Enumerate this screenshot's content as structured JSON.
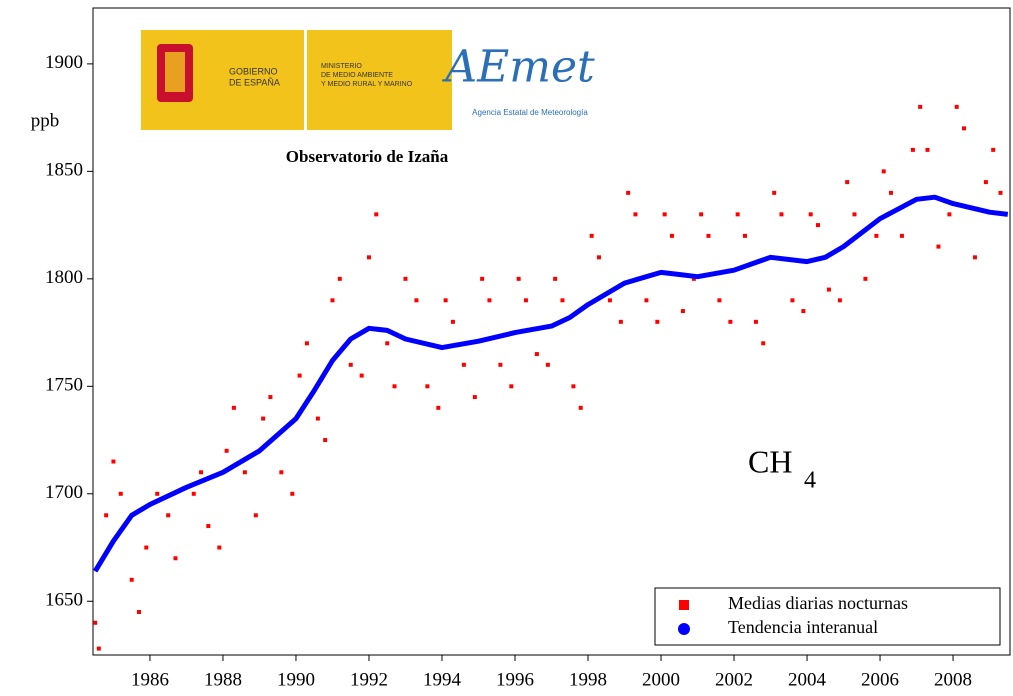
{
  "chart_data": {
    "type": "scatter",
    "subtitle": "Observatorio de Izaña",
    "y_label": "ppb",
    "formula": "CH",
    "formula_subscript": "4",
    "logo_gobierno": [
      "GOBIERNO",
      "DE ESPAÑA"
    ],
    "logo_ministerio": [
      "MINISTERIO",
      "DE MEDIO AMBIENTE",
      "Y MEDIO RURAL Y MARINO"
    ],
    "logo_aemet": "AEmet",
    "logo_agencia": "Agencia Estatal de Meteorología",
    "xlim": [
      1984.44,
      2009.56
    ],
    "ylim": [
      1625,
      1926
    ],
    "xticks": [
      1986,
      1988,
      1990,
      1992,
      1994,
      1996,
      1998,
      2000,
      2002,
      2004,
      2006,
      2008
    ],
    "yticks": [
      1650,
      1700,
      1750,
      1800,
      1850,
      1900
    ],
    "series": [
      {
        "name": "Medias diarias nocturnas",
        "color": "#ff0000",
        "type": "scatter",
        "x": [
          1984.5,
          1984.6,
          1984.8,
          1985.0,
          1985.2,
          1985.5,
          1985.7,
          1985.9,
          1986.2,
          1986.5,
          1986.7,
          1987.2,
          1987.4,
          1987.6,
          1987.9,
          1988.1,
          1988.3,
          1988.6,
          1988.9,
          1989.1,
          1989.3,
          1989.6,
          1989.9,
          1990.1,
          1990.3,
          1990.6,
          1990.8,
          1991.0,
          1991.2,
          1991.5,
          1991.8,
          1992.0,
          1992.2,
          1992.5,
          1992.7,
          1993.0,
          1993.3,
          1993.6,
          1993.9,
          1994.1,
          1994.3,
          1994.6,
          1994.9,
          1995.1,
          1995.3,
          1995.6,
          1995.9,
          1996.1,
          1996.3,
          1996.6,
          1996.9,
          1997.1,
          1997.3,
          1997.6,
          1997.8,
          1998.1,
          1998.3,
          1998.6,
          1998.9,
          1999.1,
          1999.3,
          1999.6,
          1999.9,
          2000.1,
          2000.3,
          2000.6,
          2000.9,
          2001.1,
          2001.3,
          2001.6,
          2001.9,
          2002.1,
          2002.3,
          2002.6,
          2002.8,
          2003.1,
          2003.3,
          2003.6,
          2003.9,
          2004.1,
          2004.3,
          2004.6,
          2004.9,
          2005.1,
          2005.3,
          2005.6,
          2005.9,
          2006.1,
          2006.3,
          2006.6,
          2006.9,
          2007.1,
          2007.3,
          2007.6,
          2007.9,
          2008.1,
          2008.3,
          2008.6,
          2008.9,
          2009.1,
          2009.3
        ],
        "values": [
          1640,
          1628,
          1690,
          1715,
          1700,
          1660,
          1645,
          1675,
          1700,
          1690,
          1670,
          1700,
          1710,
          1685,
          1675,
          1720,
          1740,
          1710,
          1690,
          1735,
          1745,
          1710,
          1700,
          1755,
          1770,
          1735,
          1725,
          1790,
          1800,
          1760,
          1755,
          1810,
          1830,
          1770,
          1750,
          1800,
          1790,
          1750,
          1740,
          1790,
          1780,
          1760,
          1745,
          1800,
          1790,
          1760,
          1750,
          1800,
          1790,
          1765,
          1760,
          1800,
          1790,
          1750,
          1740,
          1820,
          1810,
          1790,
          1780,
          1840,
          1830,
          1790,
          1780,
          1830,
          1820,
          1785,
          1800,
          1830,
          1820,
          1790,
          1780,
          1830,
          1820,
          1780,
          1770,
          1840,
          1830,
          1790,
          1785,
          1830,
          1825,
          1795,
          1790,
          1845,
          1830,
          1800,
          1820,
          1850,
          1840,
          1820,
          1860,
          1880,
          1860,
          1815,
          1830,
          1880,
          1870,
          1810,
          1845,
          1860,
          1840
        ]
      },
      {
        "name": "Tendencia interanual",
        "color": "#0000ff",
        "type": "line",
        "x": [
          1984.5,
          1985,
          1985.5,
          1986,
          1987,
          1988,
          1989,
          1990,
          1990.5,
          1991,
          1991.5,
          1992,
          1992.5,
          1993,
          1994,
          1995,
          1996,
          1997,
          1997.5,
          1998,
          1999,
          2000,
          2000.5,
          2001,
          2002,
          2003,
          2004,
          2004.5,
          2005,
          2006,
          2007,
          2007.5,
          2008,
          2009,
          2009.5
        ],
        "values": [
          1664,
          1678,
          1690,
          1695,
          1703,
          1710,
          1720,
          1735,
          1748,
          1762,
          1772,
          1777,
          1776,
          1772,
          1768,
          1771,
          1775,
          1778,
          1782,
          1788,
          1798,
          1803,
          1802,
          1801,
          1804,
          1810,
          1808,
          1810,
          1815,
          1828,
          1837,
          1838,
          1835,
          1831,
          1830
        ]
      }
    ]
  }
}
